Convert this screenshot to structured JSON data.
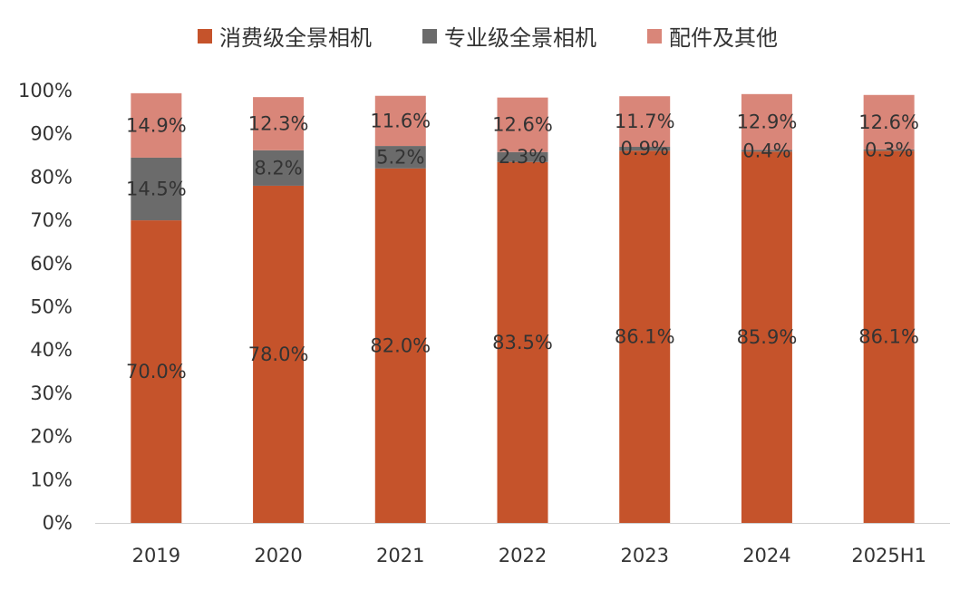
{
  "chart_data": {
    "type": "bar",
    "stacked": true,
    "percent_stacked": true,
    "categories": [
      "2019",
      "2020",
      "2021",
      "2022",
      "2023",
      "2024",
      "2025H1"
    ],
    "series": [
      {
        "name": "消费级全景相机",
        "color": "#c5532b",
        "values": [
          70.0,
          78.0,
          82.0,
          83.5,
          86.1,
          85.9,
          86.1
        ],
        "labels": [
          "70.0%",
          "78.0%",
          "82.0%",
          "83.5%",
          "86.1%",
          "85.9%",
          "86.1%"
        ]
      },
      {
        "name": "专业级全景相机",
        "color": "#6b6b6b",
        "values": [
          14.5,
          8.2,
          5.2,
          2.3,
          0.9,
          0.4,
          0.3
        ],
        "labels": [
          "14.5%",
          "8.2%",
          "5.2%",
          "2.3%",
          "0.9%",
          "0.4%",
          "0.3%"
        ]
      },
      {
        "name": "配件及其他",
        "color": "#d98679",
        "values": [
          14.9,
          12.3,
          11.6,
          12.6,
          11.7,
          12.9,
          12.6
        ],
        "labels": [
          "14.9%",
          "12.3%",
          "11.6%",
          "12.6%",
          "11.7%",
          "12.9%",
          "12.6%"
        ]
      }
    ],
    "y_ticks": [
      "0%",
      "10%",
      "20%",
      "30%",
      "40%",
      "50%",
      "60%",
      "70%",
      "80%",
      "90%",
      "100%"
    ],
    "ylim": [
      0,
      100
    ],
    "grid": false,
    "legend": "top"
  }
}
